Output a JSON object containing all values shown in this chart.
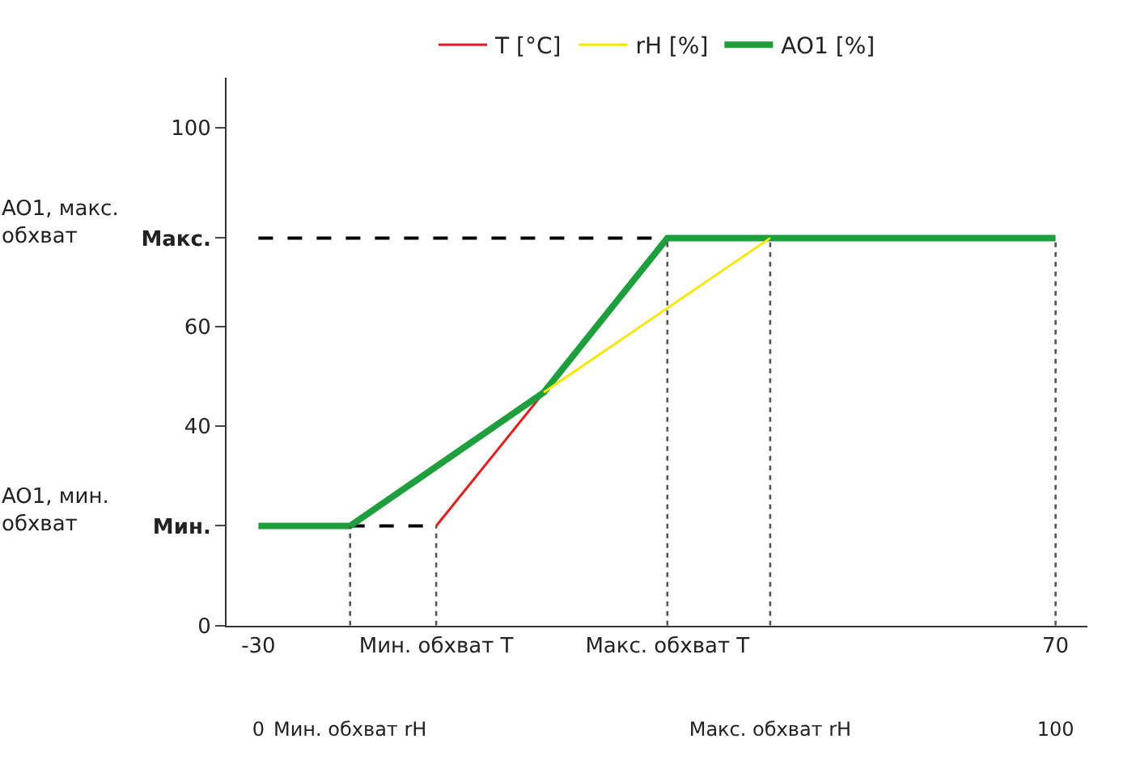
{
  "chart_data": {
    "type": "line",
    "series": [
      {
        "name": "T [°C]",
        "color": "#e02020",
        "x": [
          -7.7,
          5.8
        ],
        "values": [
          20,
          46.8
        ],
        "line_style": "solid"
      },
      {
        "name": "rH [%]",
        "color": "#f5e800",
        "axis": "x2",
        "x": [
          35.8,
          64.2
        ],
        "values": [
          46.8,
          77.8
        ],
        "line_style": "solid"
      },
      {
        "color": "#000000",
        "x": [
          -30,
          21.3
        ],
        "values": [
          77.8,
          77.8
        ],
        "line_style": "dashed"
      },
      {
        "color": "#000000",
        "x": [
          -18.5,
          -7.7
        ],
        "values": [
          20,
          20
        ],
        "line_style": "dashed"
      },
      {
        "color": "#555555",
        "x": [
          -18.5,
          -18.5
        ],
        "values": [
          0,
          20
        ],
        "line_style": "dotted"
      },
      {
        "color": "#555555",
        "x": [
          -7.7,
          -7.7
        ],
        "values": [
          0,
          20
        ],
        "line_style": "dotted"
      },
      {
        "color": "#555555",
        "x": [
          21.3,
          21.3
        ],
        "values": [
          0,
          77.8
        ],
        "line_style": "dotted"
      },
      {
        "color": "#555555",
        "x": [
          34.2,
          34.2
        ],
        "values": [
          0,
          77.8
        ],
        "line_style": "dotted"
      },
      {
        "color": "#555555",
        "x": [
          70,
          70
        ],
        "values": [
          0,
          77.8
        ],
        "line_style": "dotted"
      },
      {
        "name": "AO1 [%]",
        "color": "#1e9e3c",
        "x": [
          -30,
          -18.5,
          5.8,
          21.3,
          70
        ],
        "values": [
          20,
          20,
          46.8,
          77.8,
          77.8
        ],
        "line_style": "solid"
      }
    ],
    "xlim": [
      -34,
      74
    ],
    "xticks": [
      -30,
      {
        "value": -7.7,
        "label": "Мин. обхват T"
      },
      {
        "value": 21.3,
        "label": "Макс. обхват T"
      },
      70
    ],
    "x2lim": [
      -4,
      104
    ],
    "x2ticks": [
      0,
      {
        "value": 11.5,
        "label": "Мин. обхват rH"
      },
      {
        "value": 64.2,
        "label": "Макс. обхват rH"
      },
      100
    ],
    "ylim": [
      0,
      110
    ],
    "yticks": [
      0,
      {
        "value": 20,
        "label": "Мин."
      },
      40,
      60,
      {
        "value": 77.8,
        "label": "Макс."
      },
      100
    ],
    "annotations": [
      "AO1, мин.\nобхват",
      "AO1, макс.\nобхват"
    ],
    "legend": "top",
    "grid": false,
    "marker": "none"
  }
}
